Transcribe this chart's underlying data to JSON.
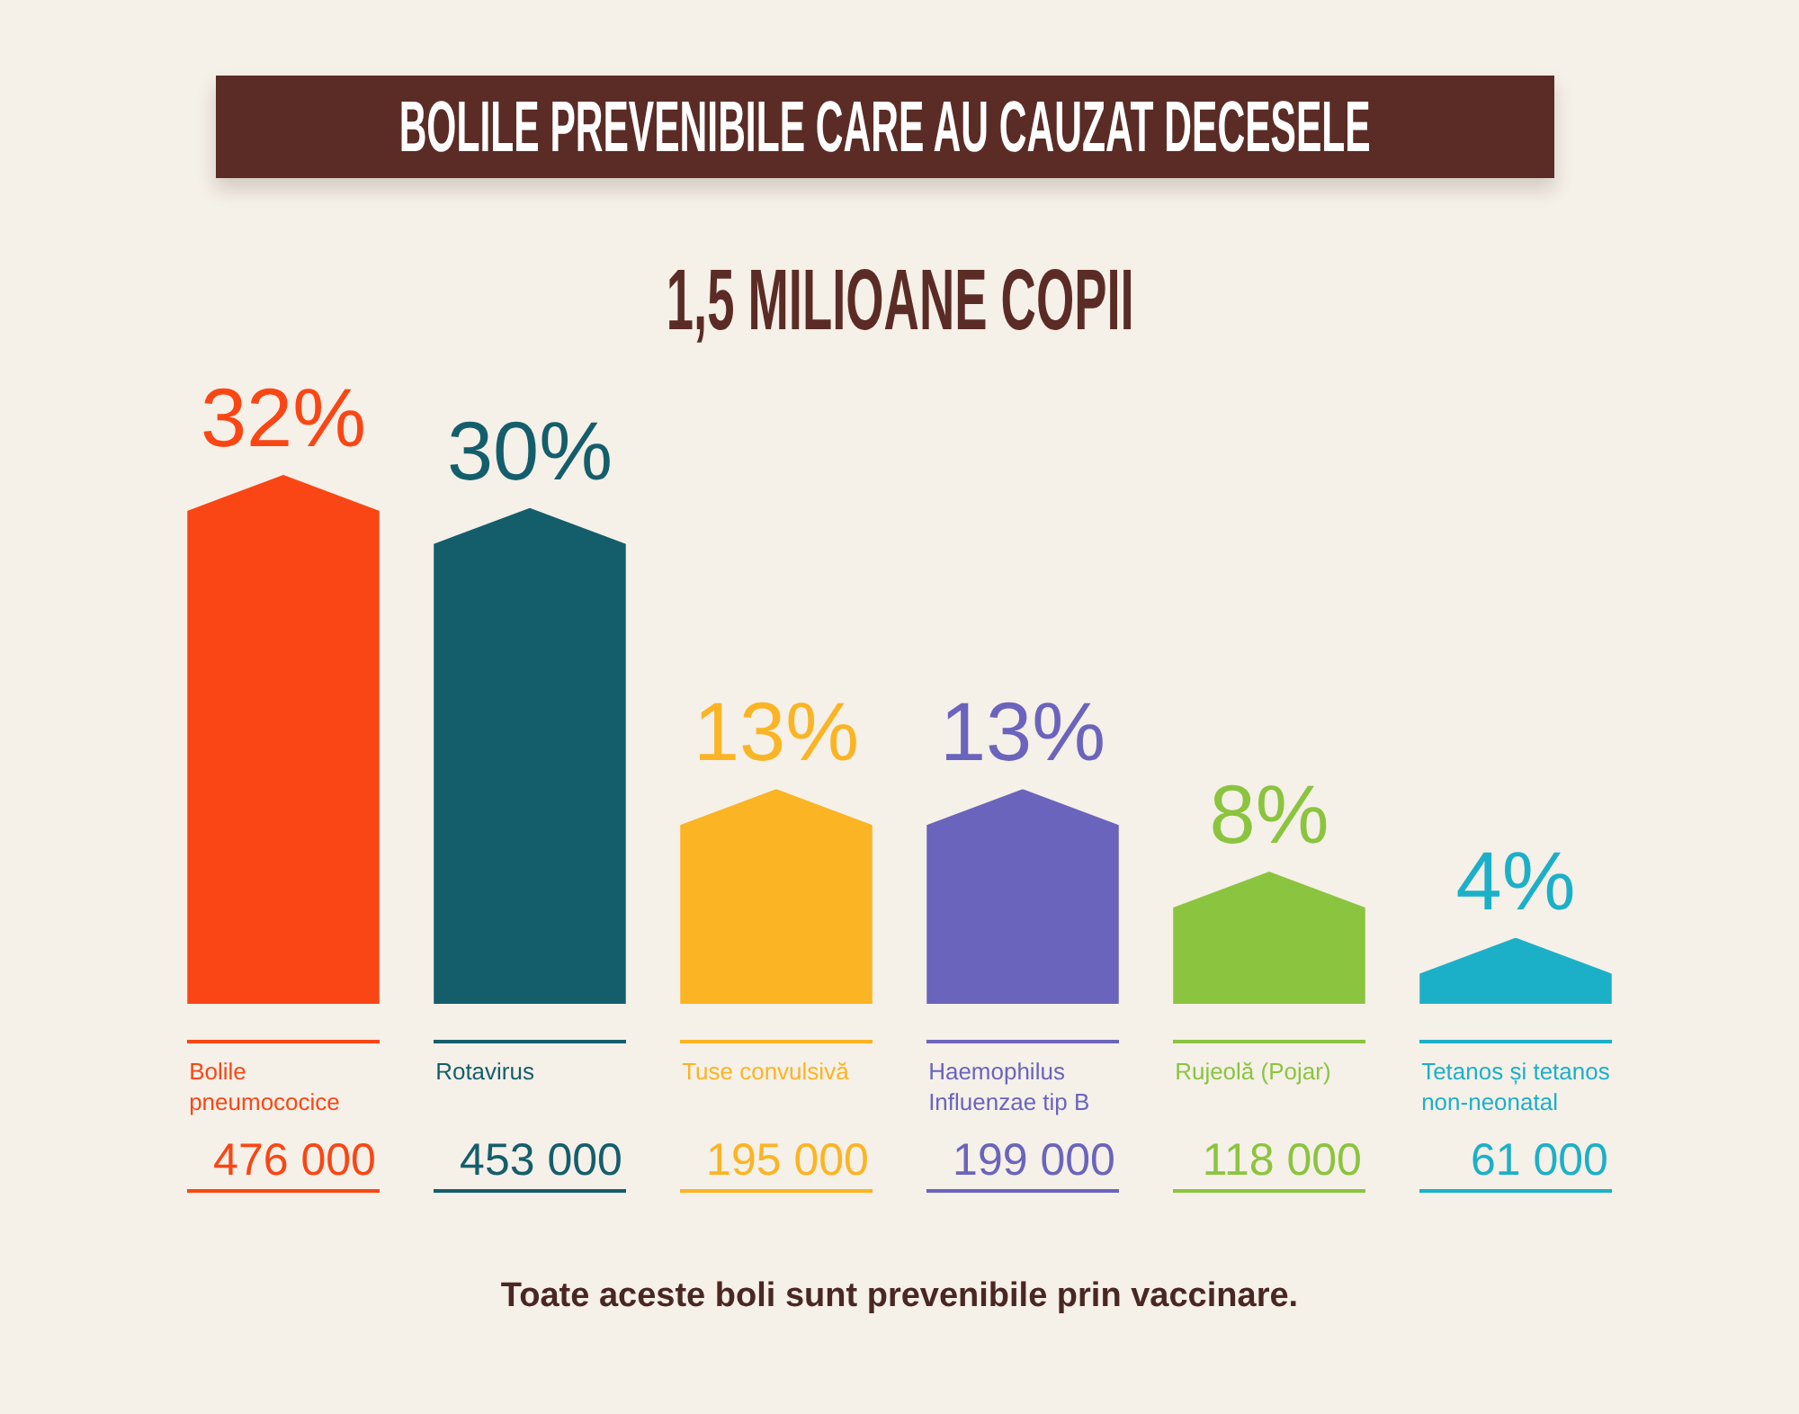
{
  "chart_data": {
    "type": "bar",
    "title": "BOLILE PREVENIBILE CARE AU CAUZAT DECESELE",
    "subtitle": "1,5 MILIOANE COPII",
    "categories": [
      "Bolile pneumococice",
      "Rotavirus",
      "Tuse convulsivă",
      "Haemophilus Influenzae tip B",
      "Rujeolă (Pojar)",
      "Tetanos și tetanos non-neonatal"
    ],
    "values": [
      32,
      30,
      13,
      13,
      8,
      4
    ],
    "value_labels": [
      "32%",
      "30%",
      "13%",
      "13%",
      "8%",
      "4%"
    ],
    "colors": [
      "#fa4614",
      "#145e6c",
      "#fbb423",
      "#6b64bd",
      "#8bc43f",
      "#1cb0c8"
    ],
    "annotations": [
      "476 000",
      "453 000",
      "195 000",
      "199 000",
      "118 000",
      "61 000",
      "Toate aceste boli sunt prevenibile prin vaccinare."
    ]
  }
}
